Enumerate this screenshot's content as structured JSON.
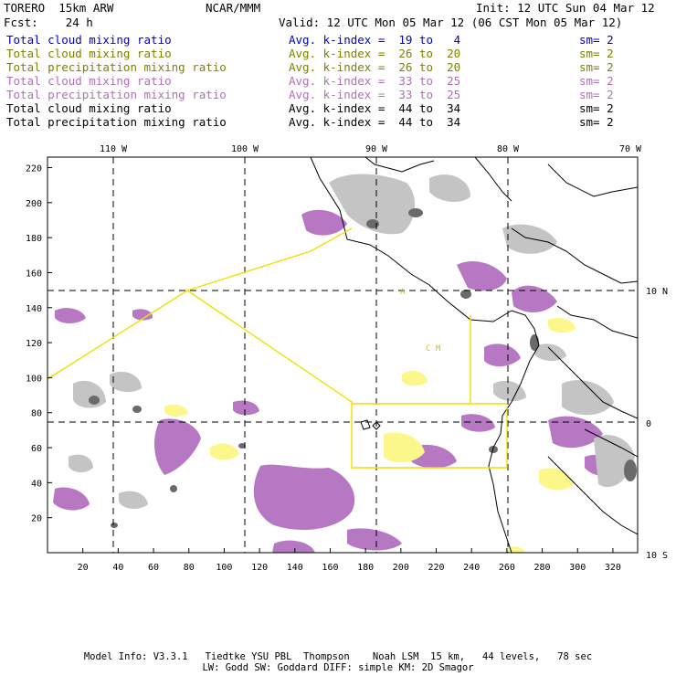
{
  "header": {
    "model": "TORERO  15km ARW",
    "org": "NCAR/MMM",
    "init": "Init: 12 UTC Sun 04 Mar 12",
    "fcst": "Fcst:    24 h",
    "valid": "Valid: 12 UTC Mon 05 Mar 12 (06 CST Mon 05 Mar 12)"
  },
  "legend": [
    {
      "field": "Total cloud mixing ratio",
      "range": "Avg. k-index =  19 to   4",
      "sm": "sm= 2",
      "color": "#0000cc"
    },
    {
      "field": "Total cloud mixing ratio",
      "range": "Avg. k-index =  26 to  20",
      "sm": "sm= 2",
      "color": "#808000"
    },
    {
      "field": "Total precipitation mixing ratio",
      "range": "Avg. k-index =  26 to  20",
      "sm": "sm= 2",
      "color": "#808000"
    },
    {
      "field": "Total cloud mixing ratio",
      "range": "Avg. k-index =  33 to  25",
      "sm": "sm= 2",
      "color": "#b070b8"
    },
    {
      "field": "Total precipitation mixing ratio",
      "range": "Avg. k-index =  33 to  25",
      "sm": "sm= 2",
      "color": "#b070b8"
    },
    {
      "field": "Total cloud mixing ratio",
      "range": "Avg. k-index =  44 to  34",
      "sm": "sm= 2",
      "color": "#000000"
    },
    {
      "field": "Total precipitation mixing ratio",
      "range": "Avg. k-index =  44 to  34",
      "sm": "sm= 2",
      "color": "#000000"
    }
  ],
  "map": {
    "lon_labels": [
      "110 W",
      "100 W",
      "90 W",
      "80 W",
      "70 W"
    ],
    "lat_labels": [
      "10 N",
      "0",
      "10 S"
    ],
    "x_ticks": [
      "20",
      "40",
      "60",
      "80",
      "100",
      "120",
      "140",
      "160",
      "180",
      "200",
      "220",
      "240",
      "260",
      "280",
      "300",
      "320"
    ],
    "y_ticks": [
      "20",
      "40",
      "60",
      "80",
      "100",
      "120",
      "140",
      "160",
      "180",
      "200",
      "220"
    ],
    "grid_x": {
      "min": 0,
      "max": 334
    },
    "grid_y": {
      "min": 0,
      "max": 226
    },
    "box_label_a": "A",
    "box_label_b": "C M",
    "colors": {
      "purple": "#b370c0",
      "yellow": "#fbf78a",
      "gray_light": "#c4c4c4",
      "gray_dark": "#6a6a6a",
      "box_outline": "#f0e000"
    }
  },
  "footer": {
    "line1": "Model Info: V3.3.1   Tiedtke YSU PBL  Thompson    Noah LSM  15 km,   44 levels,   78 sec",
    "line2": "LW: Godd SW: Goddard DIFF: simple KM: 2D Smagor"
  }
}
